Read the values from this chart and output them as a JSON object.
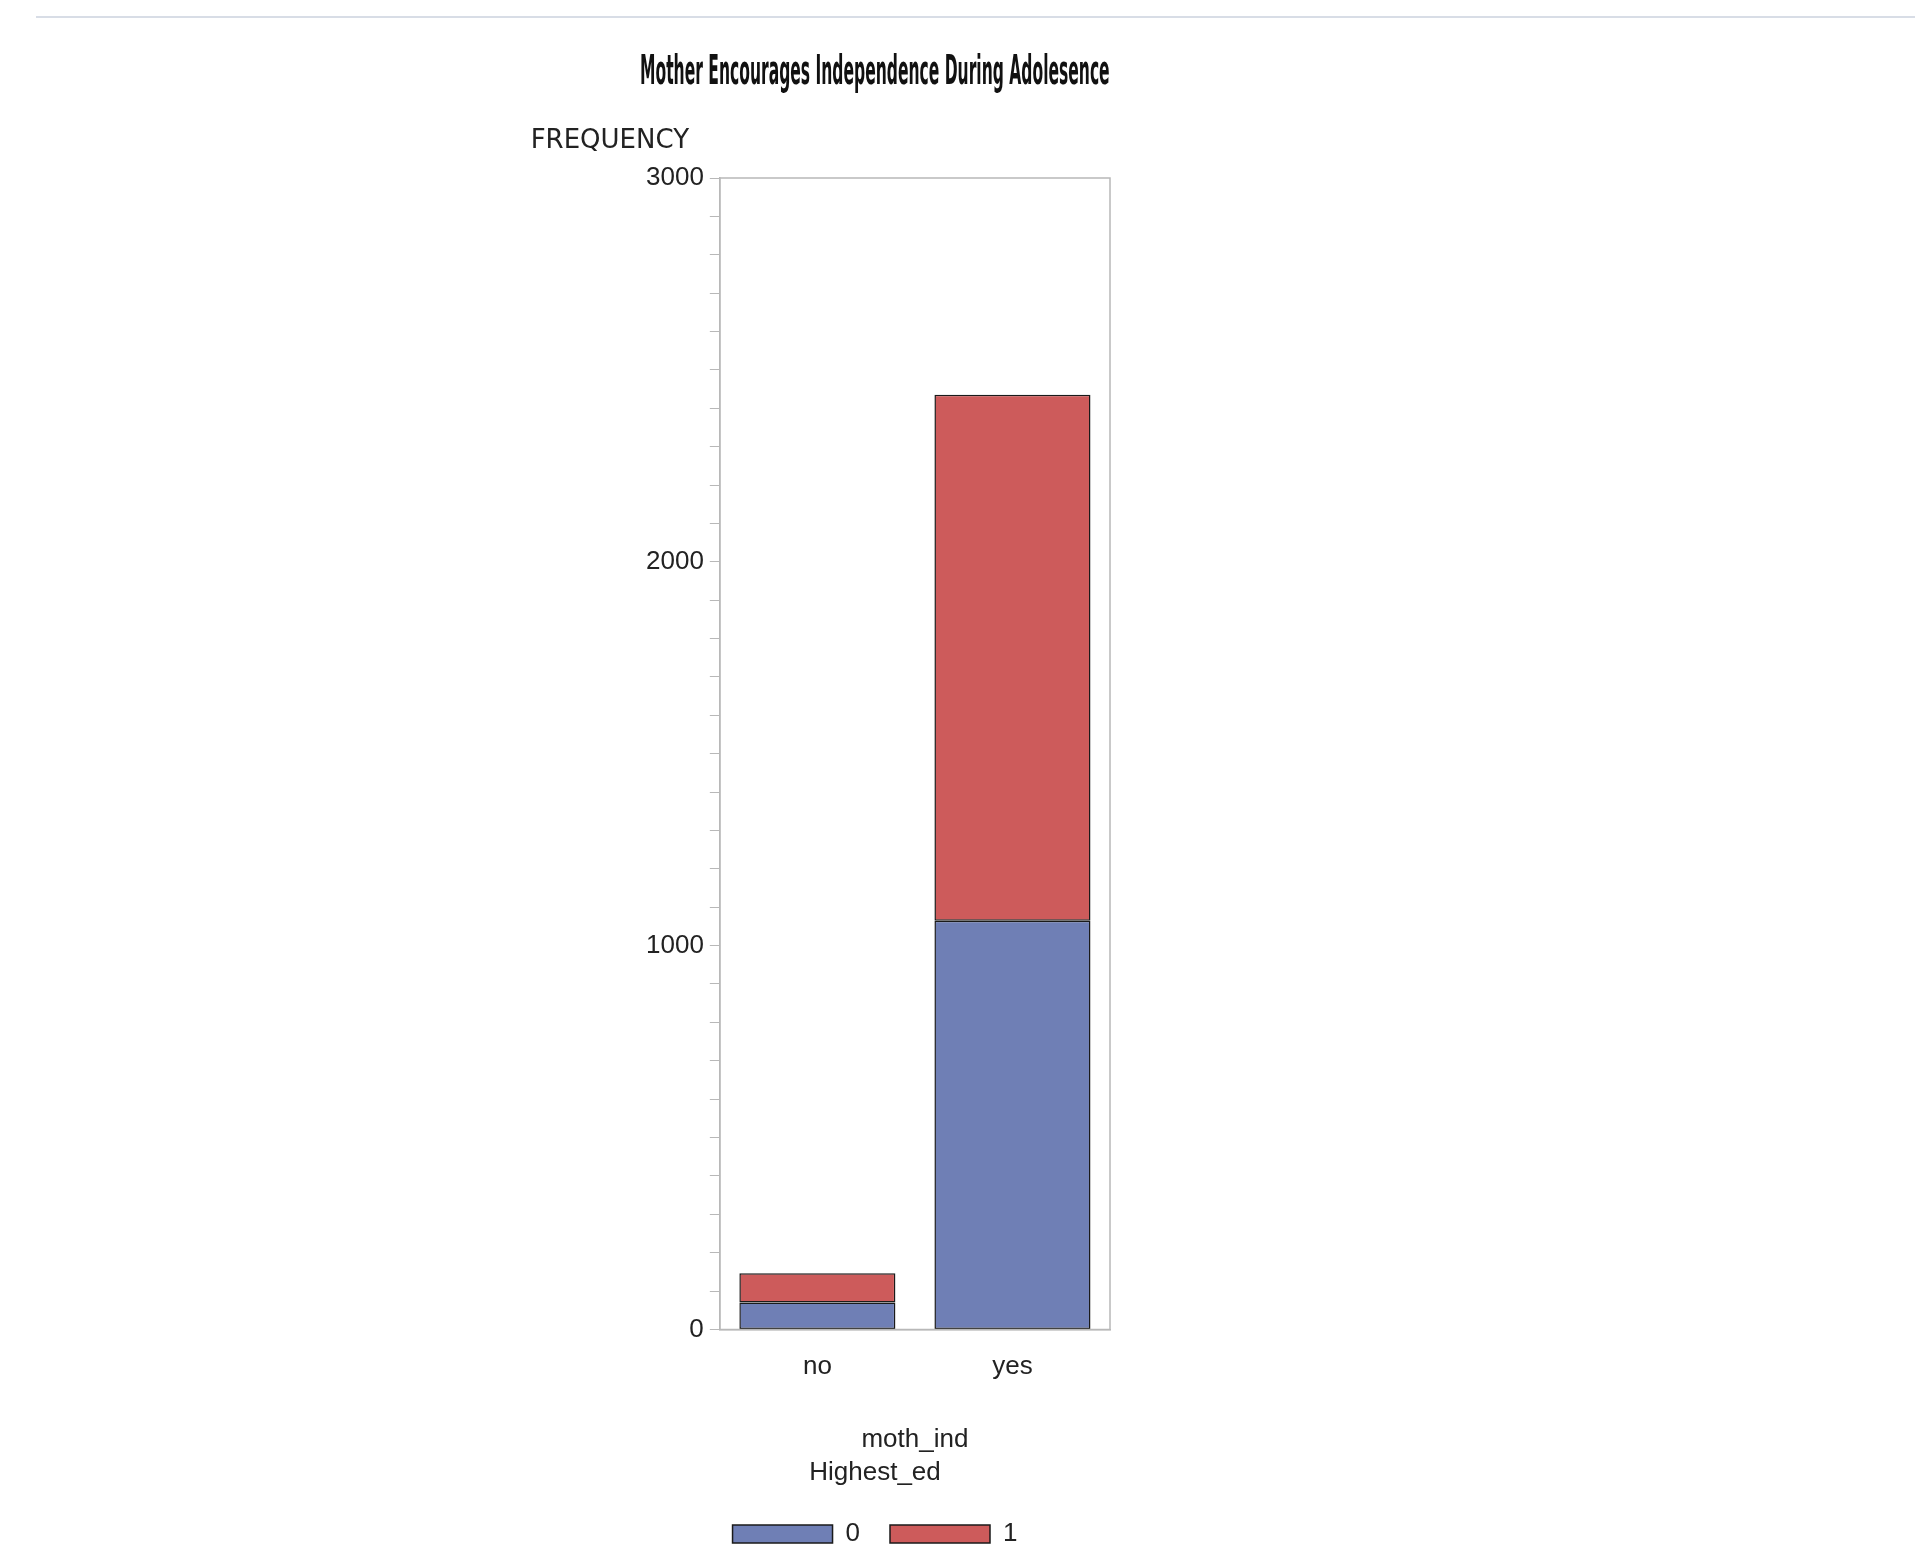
{
  "chart_data": {
    "type": "bar",
    "title": "Mother Encourages Independence During Adolesence",
    "xlabel": "moth_ind",
    "ylabel": "FREQUENCY",
    "legend_title": "Highest_ed",
    "categories": [
      "no",
      "yes"
    ],
    "stacked": true,
    "series": [
      {
        "name": "0",
        "color": "#6f7fb5",
        "values": [
          70,
          1065
        ]
      },
      {
        "name": "1",
        "color": "#cd5b5b",
        "values": [
          76,
          1370
        ]
      }
    ],
    "ylim": [
      0,
      3000
    ],
    "yticks": [
      0,
      {
        "value": 100,
        "label": null
      },
      {
        "value": 200,
        "label": null
      },
      {
        "value": 300,
        "label": null
      },
      {
        "value": 400,
        "label": null
      },
      {
        "value": 500,
        "label": null
      },
      {
        "value": 600,
        "label": null
      },
      {
        "value": 700,
        "label": null
      },
      {
        "value": 800,
        "label": null
      },
      {
        "value": 900,
        "label": null
      },
      1000,
      {
        "value": 1100,
        "label": null
      },
      {
        "value": 1200,
        "label": null
      },
      {
        "value": 1300,
        "label": null
      },
      {
        "value": 1400,
        "label": null
      },
      {
        "value": 1500,
        "label": null
      },
      {
        "value": 1600,
        "label": null
      },
      {
        "value": 1700,
        "label": null
      },
      {
        "value": 1800,
        "label": null
      },
      {
        "value": 1900,
        "label": null
      },
      2000,
      {
        "value": 2100,
        "label": null
      },
      {
        "value": 2200,
        "label": null
      },
      {
        "value": 2300,
        "label": null
      },
      {
        "value": 2400,
        "label": null
      },
      {
        "value": 2500,
        "label": null
      },
      {
        "value": 2600,
        "label": null
      },
      {
        "value": 2700,
        "label": null
      },
      {
        "value": 2800,
        "label": null
      },
      {
        "value": 2900,
        "label": null
      },
      3000
    ],
    "grid": false,
    "legend": "bottom"
  }
}
